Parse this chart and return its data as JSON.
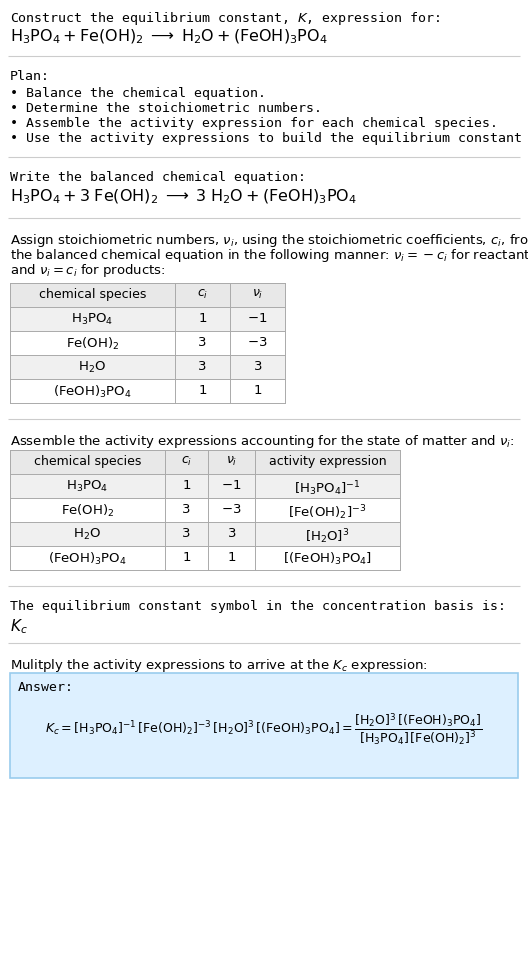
{
  "bg_color": "#ffffff",
  "answer_box_color": "#ddf0ff",
  "answer_box_edge": "#99ccee",
  "text_color": "#000000",
  "title_line1": "Construct the equilibrium constant, $K$, expression for:",
  "title_line2": "$\\mathrm{H_3PO_4 + Fe(OH)_2 \\;\\longrightarrow\\; H_2O + (FeOH)_3PO_4}$",
  "plan_header": "Plan:",
  "plan_items": [
    "\\textbullet  Balance the chemical equation.",
    "\\textbullet  Determine the stoichiometric numbers.",
    "\\textbullet  Assemble the activity expression for each chemical species.",
    "\\textbullet  Use the activity expressions to build the equilibrium constant expression."
  ],
  "balanced_header": "Write the balanced chemical equation:",
  "balanced_eq": "$\\mathrm{H_3PO_4 + 3\\;Fe(OH)_2 \\;\\longrightarrow\\; 3\\;H_2O + (FeOH)_3PO_4}$",
  "stoich_lines": [
    "Assign stoichiometric numbers, $\\nu_i$, using the stoichiometric coefficients, $c_i$, from",
    "the balanced chemical equation in the following manner: $\\nu_i = -c_i$ for reactants",
    "and $\\nu_i = c_i$ for products:"
  ],
  "table1_headers": [
    "chemical species",
    "$c_i$",
    "$\\nu_i$"
  ],
  "table1_rows": [
    [
      "$\\mathrm{H_3PO_4}$",
      "1",
      "$-1$"
    ],
    [
      "$\\mathrm{Fe(OH)_2}$",
      "3",
      "$-3$"
    ],
    [
      "$\\mathrm{H_2O}$",
      "3",
      "$3$"
    ],
    [
      "$\\mathrm{(FeOH)_3PO_4}$",
      "1",
      "$1$"
    ]
  ],
  "activity_header": "Assemble the activity expressions accounting for the state of matter and $\\nu_i$:",
  "table2_headers": [
    "chemical species",
    "$c_i$",
    "$\\nu_i$",
    "activity expression"
  ],
  "table2_rows": [
    [
      "$\\mathrm{H_3PO_4}$",
      "1",
      "$-1$",
      "$[\\mathrm{H_3PO_4}]^{-1}$"
    ],
    [
      "$\\mathrm{Fe(OH)_2}$",
      "3",
      "$-3$",
      "$[\\mathrm{Fe(OH)_2}]^{-3}$"
    ],
    [
      "$\\mathrm{H_2O}$",
      "3",
      "$3$",
      "$[\\mathrm{H_2O}]^{3}$"
    ],
    [
      "$\\mathrm{(FeOH)_3PO_4}$",
      "1",
      "$1$",
      "$[(\\mathrm{FeOH})_3\\mathrm{PO_4}]$"
    ]
  ],
  "kc_header": "The equilibrium constant symbol in the concentration basis is:",
  "kc_symbol": "$K_c$",
  "multiply_header": "Mulitply the activity expressions to arrive at the $K_c$ expression:",
  "answer_label": "Answer:",
  "table_line_color": "#aaaaaa",
  "table_header_bg": "#e8e8e8",
  "table_row_alt": "#f0f0f0",
  "table_row_white": "#ffffff"
}
